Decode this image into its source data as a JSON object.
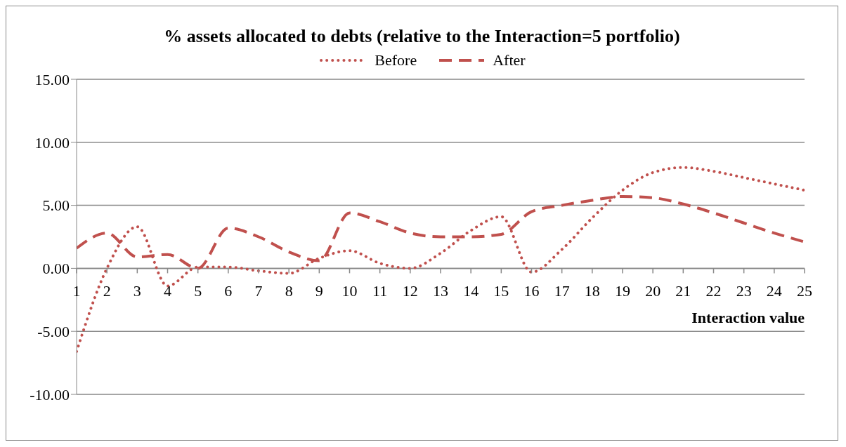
{
  "chart_data": {
    "type": "line",
    "title": "% assets allocated to debts (relative to the Interaction=5 portfolio)",
    "xlabel": "Interaction value",
    "x": [
      1,
      2,
      3,
      4,
      5,
      6,
      7,
      8,
      9,
      10,
      11,
      12,
      13,
      14,
      15,
      16,
      17,
      18,
      19,
      20,
      21,
      22,
      23,
      24,
      25
    ],
    "xlim": [
      1,
      25
    ],
    "xticks": [
      1,
      2,
      3,
      4,
      5,
      6,
      7,
      8,
      9,
      10,
      11,
      12,
      13,
      14,
      15,
      16,
      17,
      18,
      19,
      20,
      21,
      22,
      23,
      24,
      25
    ],
    "ylim": [
      -10,
      15
    ],
    "yticks": [
      {
        "value": -10,
        "label": "-10.00"
      },
      {
        "value": -5,
        "label": "-5.00"
      },
      {
        "value": 0,
        "label": "0.00"
      },
      {
        "value": 5,
        "label": "5.00"
      },
      {
        "value": 10,
        "label": "10.00"
      },
      {
        "value": 15,
        "label": "15.00"
      }
    ],
    "series": [
      {
        "name": "Before",
        "color": "#c0504d",
        "line_style": "dotted",
        "values": [
          -6.6,
          0.0,
          3.3,
          -1.4,
          0.1,
          0.1,
          -0.2,
          -0.4,
          0.8,
          1.4,
          0.4,
          0.0,
          1.2,
          3.0,
          4.1,
          -0.3,
          1.5,
          4.0,
          6.2,
          7.6,
          8.0,
          7.7,
          7.2,
          6.7,
          6.2
        ]
      },
      {
        "name": "After",
        "color": "#c0504d",
        "line_style": "dashed",
        "values": [
          1.6,
          2.8,
          0.9,
          1.1,
          0.0,
          3.2,
          2.5,
          1.3,
          0.6,
          4.4,
          3.7,
          2.8,
          2.5,
          2.5,
          2.7,
          4.5,
          5.0,
          5.4,
          5.7,
          5.6,
          5.1,
          4.4,
          3.6,
          2.8,
          2.1
        ]
      }
    ],
    "grid": "y",
    "legend": "top",
    "marker": "none"
  }
}
